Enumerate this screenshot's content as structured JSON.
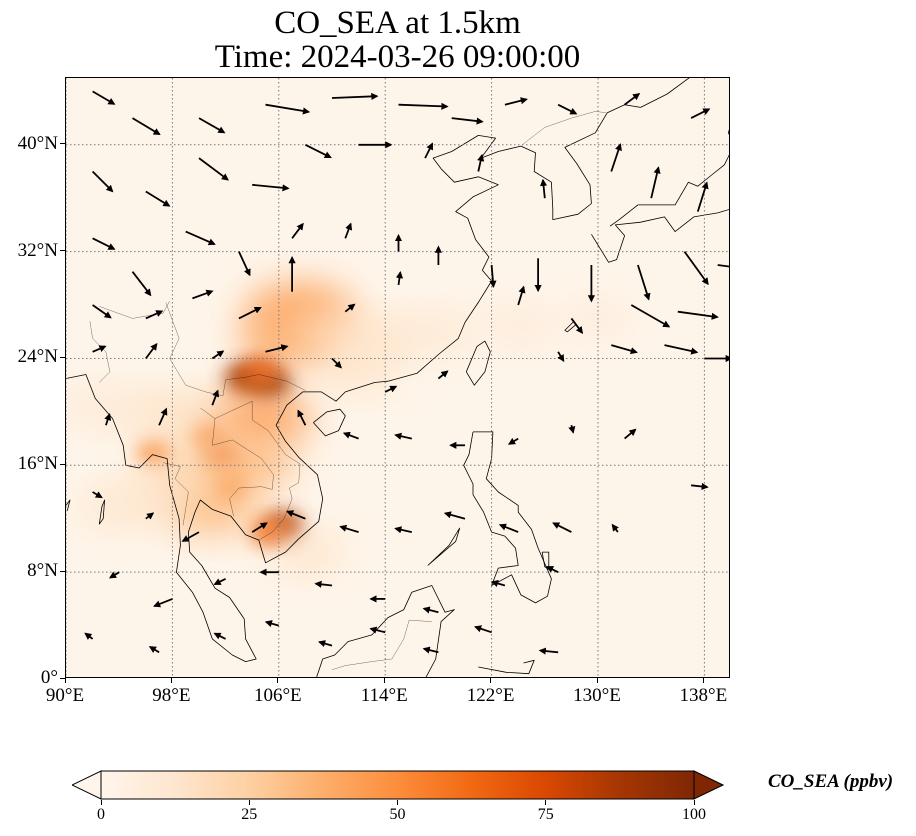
{
  "title": {
    "line1": "CO_SEA at 1.5km",
    "line2": "Time: 2024-03-26 09:00:00"
  },
  "map": {
    "projection": "PlateCarree",
    "lon_range": [
      90,
      140
    ],
    "lat_range": [
      0,
      45
    ],
    "gridlines": true,
    "field_name": "CO_SEA",
    "vector_field": "wind",
    "x_ticks": [
      {
        "value": 90,
        "label": "90°E"
      },
      {
        "value": 98,
        "label": "98°E"
      },
      {
        "value": 106,
        "label": "106°E"
      },
      {
        "value": 114,
        "label": "114°E"
      },
      {
        "value": 122,
        "label": "122°E"
      },
      {
        "value": 130,
        "label": "130°E"
      },
      {
        "value": 138,
        "label": "138°E"
      }
    ],
    "y_ticks": [
      {
        "value": 0,
        "label": "0°"
      },
      {
        "value": 8,
        "label": "8°N"
      },
      {
        "value": 16,
        "label": "16°N"
      },
      {
        "value": 24,
        "label": "24°N"
      },
      {
        "value": 32,
        "label": "32°N"
      },
      {
        "value": 40,
        "label": "40°N"
      }
    ],
    "hotspots": [
      {
        "lon": 105.2,
        "lat": 22.2,
        "value": 100
      },
      {
        "lon": 103.5,
        "lat": 22.5,
        "value": 90
      },
      {
        "lon": 104.8,
        "lat": 23.2,
        "value": 70
      },
      {
        "lon": 106.3,
        "lat": 11.4,
        "value": 85
      },
      {
        "lon": 105.2,
        "lat": 11.0,
        "value": 60
      },
      {
        "lon": 101.6,
        "lat": 16.6,
        "value": 70
      },
      {
        "lon": 100.6,
        "lat": 18.2,
        "value": 55
      },
      {
        "lon": 102.2,
        "lat": 14.5,
        "value": 55
      },
      {
        "lon": 96.7,
        "lat": 17.0,
        "value": 55
      },
      {
        "lon": 107.6,
        "lat": 27.5,
        "value": 45
      },
      {
        "lon": 106.8,
        "lat": 25.5,
        "value": 40
      },
      {
        "lon": 104.5,
        "lat": 19.5,
        "value": 45
      },
      {
        "lon": 101.0,
        "lat": 12.8,
        "value": 35
      },
      {
        "lon": 103.5,
        "lat": 16.0,
        "value": 35
      },
      {
        "lon": 99.0,
        "lat": 15.5,
        "value": 25
      },
      {
        "lon": 98.5,
        "lat": 19.5,
        "value": 20
      },
      {
        "lon": 96.0,
        "lat": 13.5,
        "value": 15
      },
      {
        "lon": 93.5,
        "lat": 12.8,
        "value": 12
      },
      {
        "lon": 95.5,
        "lat": 20.0,
        "value": 12
      },
      {
        "lon": 110.0,
        "lat": 26.0,
        "value": 18
      },
      {
        "lon": 114.0,
        "lat": 25.5,
        "value": 15
      },
      {
        "lon": 118.0,
        "lat": 26.0,
        "value": 12
      },
      {
        "lon": 124.0,
        "lat": 26.5,
        "value": 10
      },
      {
        "lon": 130.0,
        "lat": 27.0,
        "value": 8
      },
      {
        "lon": 108.0,
        "lat": 9.5,
        "value": 15
      },
      {
        "lon": 92.0,
        "lat": 20.5,
        "value": 10
      },
      {
        "lon": 112.0,
        "lat": 23.0,
        "value": 15
      }
    ],
    "wind_vectors": [
      {
        "lon": 92,
        "lat": 44,
        "u": 1.2,
        "v": -0.7
      },
      {
        "lon": 95,
        "lat": 42,
        "u": 1.5,
        "v": -0.9
      },
      {
        "lon": 100,
        "lat": 42,
        "u": 1.4,
        "v": -0.8
      },
      {
        "lon": 105,
        "lat": 43,
        "u": 2.4,
        "v": -0.4
      },
      {
        "lon": 110,
        "lat": 43.5,
        "u": 2.5,
        "v": 0.1
      },
      {
        "lon": 115,
        "lat": 43,
        "u": 2.7,
        "v": -0.1
      },
      {
        "lon": 119,
        "lat": 42,
        "u": 1.7,
        "v": -0.2
      },
      {
        "lon": 123,
        "lat": 43,
        "u": 1.2,
        "v": 0.3
      },
      {
        "lon": 127,
        "lat": 43,
        "u": 1.0,
        "v": -0.5
      },
      {
        "lon": 132,
        "lat": 43,
        "u": 0.8,
        "v": 0.6
      },
      {
        "lon": 137,
        "lat": 42,
        "u": 1.0,
        "v": 0.5
      },
      {
        "lon": 92,
        "lat": 38,
        "u": 1.1,
        "v": -1.1
      },
      {
        "lon": 96,
        "lat": 36.5,
        "u": 1.3,
        "v": -0.8
      },
      {
        "lon": 100,
        "lat": 39,
        "u": 1.6,
        "v": -1.2
      },
      {
        "lon": 104,
        "lat": 37,
        "u": 2.0,
        "v": -0.2
      },
      {
        "lon": 108,
        "lat": 40,
        "u": 1.4,
        "v": -0.7
      },
      {
        "lon": 112,
        "lat": 40,
        "u": 1.8,
        "v": 0.0
      },
      {
        "lon": 117,
        "lat": 39,
        "u": 0.4,
        "v": 0.8
      },
      {
        "lon": 121,
        "lat": 38,
        "u": 0.2,
        "v": 0.9
      },
      {
        "lon": 126,
        "lat": 36,
        "u": -0.1,
        "v": 1.0
      },
      {
        "lon": 131,
        "lat": 38,
        "u": 0.5,
        "v": 1.5
      },
      {
        "lon": 134,
        "lat": 36,
        "u": 0.4,
        "v": 1.7
      },
      {
        "lon": 137.5,
        "lat": 35,
        "u": 0.5,
        "v": 1.6
      },
      {
        "lon": 92,
        "lat": 33,
        "u": 1.2,
        "v": -0.6
      },
      {
        "lon": 95,
        "lat": 30.5,
        "u": 1.0,
        "v": -1.3
      },
      {
        "lon": 99,
        "lat": 33.5,
        "u": 1.6,
        "v": -0.7
      },
      {
        "lon": 103,
        "lat": 32,
        "u": 0.6,
        "v": -1.3
      },
      {
        "lon": 107,
        "lat": 33,
        "u": 0.6,
        "v": 0.8
      },
      {
        "lon": 111,
        "lat": 33,
        "u": 0.3,
        "v": 0.8
      },
      {
        "lon": 115,
        "lat": 32,
        "u": 0.0,
        "v": 0.9
      },
      {
        "lon": 118,
        "lat": 31,
        "u": 0.0,
        "v": 1.0
      },
      {
        "lon": 122,
        "lat": 31,
        "u": 0.1,
        "v": -1.2
      },
      {
        "lon": 125.5,
        "lat": 31.5,
        "u": 0.0,
        "v": -1.8
      },
      {
        "lon": 129.5,
        "lat": 31,
        "u": 0.0,
        "v": -2.0
      },
      {
        "lon": 133,
        "lat": 31,
        "u": 0.6,
        "v": -1.9
      },
      {
        "lon": 136.5,
        "lat": 32,
        "u": 1.3,
        "v": -1.8
      },
      {
        "lon": 139,
        "lat": 31,
        "u": 1.5,
        "v": -0.2
      },
      {
        "lon": 92,
        "lat": 28,
        "u": 1.0,
        "v": -0.7
      },
      {
        "lon": 96,
        "lat": 27,
        "u": 0.9,
        "v": 0.4
      },
      {
        "lon": 99.5,
        "lat": 28.5,
        "u": 1.1,
        "v": 0.4
      },
      {
        "lon": 103,
        "lat": 27,
        "u": 1.2,
        "v": 0.6
      },
      {
        "lon": 107,
        "lat": 29,
        "u": 0.0,
        "v": 1.9
      },
      {
        "lon": 111,
        "lat": 27.5,
        "u": 0.5,
        "v": 0.4
      },
      {
        "lon": 115,
        "lat": 29.5,
        "u": 0.1,
        "v": 0.7
      },
      {
        "lon": 124,
        "lat": 28,
        "u": 0.3,
        "v": 1.0
      },
      {
        "lon": 128,
        "lat": 27,
        "u": 0.6,
        "v": -0.8
      },
      {
        "lon": 132.5,
        "lat": 28,
        "u": 2.1,
        "v": -1.2
      },
      {
        "lon": 136,
        "lat": 27.5,
        "u": 2.2,
        "v": -0.3
      },
      {
        "lon": 92,
        "lat": 24.5,
        "u": 0.7,
        "v": 0.3
      },
      {
        "lon": 96,
        "lat": 24,
        "u": 0.6,
        "v": 0.8
      },
      {
        "lon": 101,
        "lat": 24,
        "u": 0.6,
        "v": 0.4
      },
      {
        "lon": 105,
        "lat": 24.5,
        "u": 1.2,
        "v": 0.3
      },
      {
        "lon": 110,
        "lat": 24,
        "u": 0.5,
        "v": -0.5
      },
      {
        "lon": 114,
        "lat": 21.5,
        "u": 0.6,
        "v": 0.3
      },
      {
        "lon": 118,
        "lat": 22.5,
        "u": 0.5,
        "v": 0.4
      },
      {
        "lon": 127,
        "lat": 24.5,
        "u": 0.3,
        "v": -0.5
      },
      {
        "lon": 131,
        "lat": 25,
        "u": 1.4,
        "v": -0.4
      },
      {
        "lon": 135,
        "lat": 25,
        "u": 1.8,
        "v": -0.4
      },
      {
        "lon": 138,
        "lat": 24,
        "u": 1.5,
        "v": 0.0
      },
      {
        "lon": 93,
        "lat": 19,
        "u": 0.2,
        "v": 0.6
      },
      {
        "lon": 97,
        "lat": 19,
        "u": 0.4,
        "v": 0.9
      },
      {
        "lon": 101,
        "lat": 20.5,
        "u": 0.3,
        "v": 0.8
      },
      {
        "lon": 108,
        "lat": 19,
        "u": -0.4,
        "v": 0.8
      },
      {
        "lon": 112,
        "lat": 18,
        "u": -0.8,
        "v": 0.3
      },
      {
        "lon": 116,
        "lat": 18,
        "u": -0.9,
        "v": 0.2
      },
      {
        "lon": 120,
        "lat": 17.5,
        "u": -0.8,
        "v": 0.0
      },
      {
        "lon": 124,
        "lat": 18,
        "u": -0.5,
        "v": -0.3
      },
      {
        "lon": 128,
        "lat": 19,
        "u": 0.1,
        "v": -0.4
      },
      {
        "lon": 132,
        "lat": 18,
        "u": 0.6,
        "v": 0.5
      },
      {
        "lon": 137,
        "lat": 14.5,
        "u": 0.9,
        "v": -0.1
      },
      {
        "lon": 92,
        "lat": 14,
        "u": 0.5,
        "v": -0.3
      },
      {
        "lon": 96,
        "lat": 12,
        "u": 0.4,
        "v": 0.3
      },
      {
        "lon": 100,
        "lat": 11,
        "u": -0.9,
        "v": -0.5
      },
      {
        "lon": 104,
        "lat": 11,
        "u": 0.8,
        "v": 0.5
      },
      {
        "lon": 108,
        "lat": 12,
        "u": -1.0,
        "v": 0.4
      },
      {
        "lon": 112,
        "lat": 11,
        "u": -1.0,
        "v": 0.3
      },
      {
        "lon": 116,
        "lat": 11,
        "u": -0.9,
        "v": 0.2
      },
      {
        "lon": 120,
        "lat": 12,
        "u": -1.1,
        "v": 0.3
      },
      {
        "lon": 124,
        "lat": 11,
        "u": -1.0,
        "v": 0.4
      },
      {
        "lon": 128,
        "lat": 11,
        "u": -1.0,
        "v": 0.5
      },
      {
        "lon": 131.5,
        "lat": 11,
        "u": -0.3,
        "v": 0.4
      },
      {
        "lon": 94,
        "lat": 8,
        "u": -0.5,
        "v": -0.3
      },
      {
        "lon": 98,
        "lat": 6,
        "u": -1.0,
        "v": -0.4
      },
      {
        "lon": 102,
        "lat": 7.5,
        "u": -0.6,
        "v": -0.3
      },
      {
        "lon": 106,
        "lat": 8,
        "u": -1.0,
        "v": 0.0
      },
      {
        "lon": 110,
        "lat": 7,
        "u": -0.9,
        "v": 0.1
      },
      {
        "lon": 114,
        "lat": 6,
        "u": -0.8,
        "v": 0.0
      },
      {
        "lon": 118,
        "lat": 5,
        "u": -0.8,
        "v": 0.2
      },
      {
        "lon": 123,
        "lat": 7,
        "u": -0.7,
        "v": 0.2
      },
      {
        "lon": 127,
        "lat": 8,
        "u": -0.6,
        "v": 0.3
      },
      {
        "lon": 92,
        "lat": 3,
        "u": -0.4,
        "v": 0.3
      },
      {
        "lon": 97,
        "lat": 2,
        "u": -0.5,
        "v": 0.3
      },
      {
        "lon": 102,
        "lat": 3,
        "u": -0.6,
        "v": 0.3
      },
      {
        "lon": 106,
        "lat": 4,
        "u": -0.7,
        "v": 0.2
      },
      {
        "lon": 110,
        "lat": 2.5,
        "u": -0.7,
        "v": 0.2
      },
      {
        "lon": 114,
        "lat": 3.5,
        "u": -0.8,
        "v": 0.2
      },
      {
        "lon": 118,
        "lat": 2,
        "u": -0.8,
        "v": 0.2
      },
      {
        "lon": 122,
        "lat": 3.5,
        "u": -0.9,
        "v": 0.3
      },
      {
        "lon": 127,
        "lat": 2,
        "u": -1.0,
        "v": 0.1
      }
    ]
  },
  "colorbar": {
    "label": "CO_SEA (ppbv)",
    "colormap": [
      "#fff5eb",
      "#fee6ce",
      "#fdd0a2",
      "#fdae6b",
      "#fd8d3c",
      "#f16913",
      "#d94801",
      "#a63603",
      "#7f2704"
    ],
    "range": [
      0,
      100
    ],
    "extend": "both",
    "ticks": [
      {
        "value": 0,
        "label": "0"
      },
      {
        "value": 25,
        "label": "25"
      },
      {
        "value": 50,
        "label": "50"
      },
      {
        "value": 75,
        "label": "75"
      },
      {
        "value": 100,
        "label": "100"
      }
    ]
  }
}
